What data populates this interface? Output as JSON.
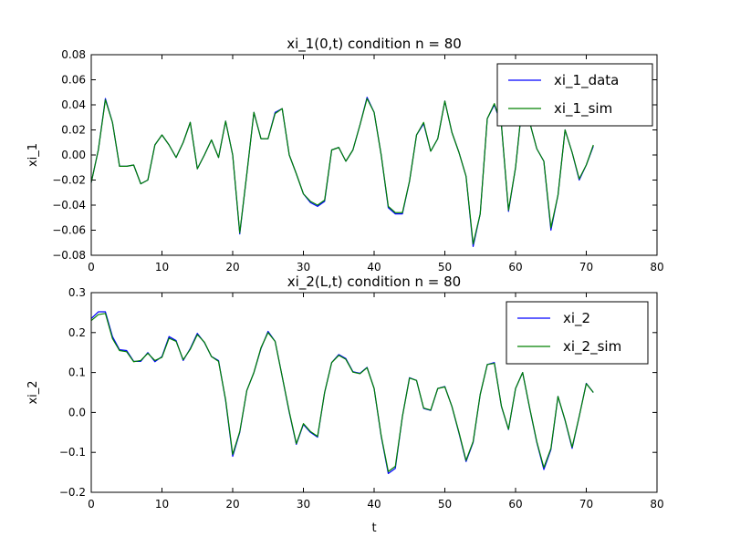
{
  "chart_data": [
    {
      "type": "line",
      "title": "xi_1(0,t) condition n = 80",
      "xlabel": "",
      "ylabel": "xi_1",
      "xlim": [
        0,
        80
      ],
      "ylim": [
        -0.08,
        0.08
      ],
      "xticks": [
        "0",
        "10",
        "20",
        "30",
        "40",
        "50",
        "60",
        "70",
        "80"
      ],
      "yticks": [
        "−0.08",
        "−0.06",
        "−0.04",
        "−0.02",
        "0.00",
        "0.02",
        "0.04",
        "0.06",
        "0.08"
      ],
      "grid": false,
      "legend_position": "top-right",
      "x": [
        0,
        1,
        2,
        3,
        4,
        5,
        6,
        7,
        8,
        9,
        10,
        11,
        12,
        13,
        14,
        15,
        16,
        17,
        18,
        19,
        20,
        21,
        22,
        23,
        24,
        25,
        26,
        27,
        28,
        29,
        30,
        31,
        32,
        33,
        34,
        35,
        36,
        37,
        38,
        39,
        40,
        41,
        42,
        43,
        44,
        45,
        46,
        47,
        48,
        49,
        50,
        51,
        52,
        53,
        54,
        55,
        56,
        57,
        58,
        59,
        60,
        61,
        62,
        63,
        64,
        65,
        66,
        67,
        68,
        69,
        70,
        71
      ],
      "series": [
        {
          "name": "xi_1_data",
          "color": "#0000ff",
          "values": [
            -0.022,
            0.004,
            0.045,
            0.026,
            -0.009,
            -0.009,
            -0.008,
            -0.023,
            -0.02,
            0.008,
            0.016,
            0.008,
            -0.002,
            0.01,
            0.026,
            -0.011,
            0.0,
            0.012,
            -0.002,
            0.027,
            0.0,
            -0.063,
            -0.015,
            0.034,
            0.013,
            0.013,
            0.034,
            0.037,
            0.0,
            -0.015,
            -0.031,
            -0.038,
            -0.041,
            -0.037,
            0.004,
            0.006,
            -0.005,
            0.004,
            0.024,
            0.046,
            0.034,
            0.0,
            -0.042,
            -0.047,
            -0.047,
            -0.021,
            0.016,
            0.025,
            0.003,
            0.013,
            0.043,
            0.018,
            0.002,
            -0.017,
            -0.073,
            -0.047,
            0.029,
            0.04,
            0.024,
            -0.045,
            -0.01,
            0.044,
            0.026,
            0.005,
            -0.005,
            -0.06,
            -0.032,
            0.02,
            0.002,
            -0.02,
            -0.008,
            0.007
          ]
        },
        {
          "name": "xi_1_sim",
          "color": "#008000",
          "values": [
            -0.022,
            0.004,
            0.044,
            0.026,
            -0.009,
            -0.009,
            -0.008,
            -0.023,
            -0.02,
            0.008,
            0.016,
            0.008,
            -0.002,
            0.01,
            0.026,
            -0.011,
            0.0,
            0.012,
            -0.002,
            0.027,
            0.0,
            -0.062,
            -0.015,
            0.034,
            0.013,
            0.013,
            0.033,
            0.037,
            0.0,
            -0.015,
            -0.031,
            -0.037,
            -0.04,
            -0.036,
            0.004,
            0.006,
            -0.005,
            0.004,
            0.024,
            0.045,
            0.034,
            0.0,
            -0.041,
            -0.046,
            -0.046,
            -0.021,
            0.016,
            0.026,
            0.003,
            0.013,
            0.043,
            0.018,
            0.002,
            -0.017,
            -0.071,
            -0.047,
            0.029,
            0.041,
            0.024,
            -0.044,
            -0.01,
            0.044,
            0.026,
            0.005,
            -0.005,
            -0.058,
            -0.032,
            0.02,
            0.002,
            -0.019,
            -0.008,
            0.008
          ]
        }
      ]
    },
    {
      "type": "line",
      "title": "xi_2(L,t) condition n = 80",
      "xlabel": "t",
      "ylabel": "xi_2",
      "xlim": [
        0,
        80
      ],
      "ylim": [
        -0.2,
        0.3
      ],
      "xticks": [
        "0",
        "10",
        "20",
        "30",
        "40",
        "50",
        "60",
        "70",
        "80"
      ],
      "yticks": [
        "−0.2",
        "−0.1",
        "0.0",
        "0.1",
        "0.2",
        "0.3"
      ],
      "grid": false,
      "legend_position": "top-right",
      "x": [
        0,
        1,
        2,
        3,
        4,
        5,
        6,
        7,
        8,
        9,
        10,
        11,
        12,
        13,
        14,
        15,
        16,
        17,
        18,
        19,
        20,
        21,
        22,
        23,
        24,
        25,
        26,
        27,
        28,
        29,
        30,
        31,
        32,
        33,
        34,
        35,
        36,
        37,
        38,
        39,
        40,
        41,
        42,
        43,
        44,
        45,
        46,
        47,
        48,
        49,
        50,
        51,
        52,
        53,
        54,
        55,
        56,
        57,
        58,
        59,
        60,
        61,
        62,
        63,
        64,
        65,
        66,
        67,
        68,
        69,
        70,
        71
      ],
      "series": [
        {
          "name": "xi_2",
          "color": "#0000ff",
          "values": [
            0.235,
            0.252,
            0.252,
            0.19,
            0.157,
            0.155,
            0.128,
            0.128,
            0.15,
            0.127,
            0.14,
            0.19,
            0.18,
            0.13,
            0.16,
            0.198,
            0.175,
            0.14,
            0.13,
            0.03,
            -0.11,
            -0.05,
            0.055,
            0.1,
            0.16,
            0.203,
            0.178,
            0.09,
            0.0,
            -0.08,
            -0.03,
            -0.05,
            -0.062,
            0.05,
            0.125,
            0.145,
            0.135,
            0.102,
            0.098,
            0.113,
            0.06,
            -0.06,
            -0.153,
            -0.14,
            -0.01,
            0.087,
            0.08,
            0.01,
            0.005,
            0.06,
            0.065,
            0.015,
            -0.052,
            -0.123,
            -0.075,
            0.045,
            0.12,
            0.125,
            0.015,
            -0.043,
            0.06,
            0.1,
            0.01,
            -0.075,
            -0.143,
            -0.093,
            0.04,
            -0.02,
            -0.09,
            -0.01,
            0.073,
            0.05
          ]
        },
        {
          "name": "xi_2_sim",
          "color": "#008000",
          "values": [
            0.23,
            0.245,
            0.248,
            0.185,
            0.155,
            0.152,
            0.127,
            0.13,
            0.148,
            0.13,
            0.138,
            0.186,
            0.178,
            0.132,
            0.158,
            0.195,
            0.176,
            0.14,
            0.128,
            0.032,
            -0.105,
            -0.048,
            0.055,
            0.1,
            0.162,
            0.2,
            0.178,
            0.09,
            0.002,
            -0.078,
            -0.028,
            -0.048,
            -0.06,
            0.05,
            0.125,
            0.143,
            0.133,
            0.101,
            0.097,
            0.112,
            0.06,
            -0.058,
            -0.148,
            -0.135,
            -0.01,
            0.086,
            0.08,
            0.011,
            0.006,
            0.06,
            0.064,
            0.015,
            -0.05,
            -0.12,
            -0.073,
            0.045,
            0.12,
            0.123,
            0.016,
            -0.042,
            0.06,
            0.1,
            0.011,
            -0.073,
            -0.138,
            -0.09,
            0.04,
            -0.019,
            -0.087,
            -0.01,
            0.072,
            0.05
          ]
        }
      ]
    }
  ]
}
